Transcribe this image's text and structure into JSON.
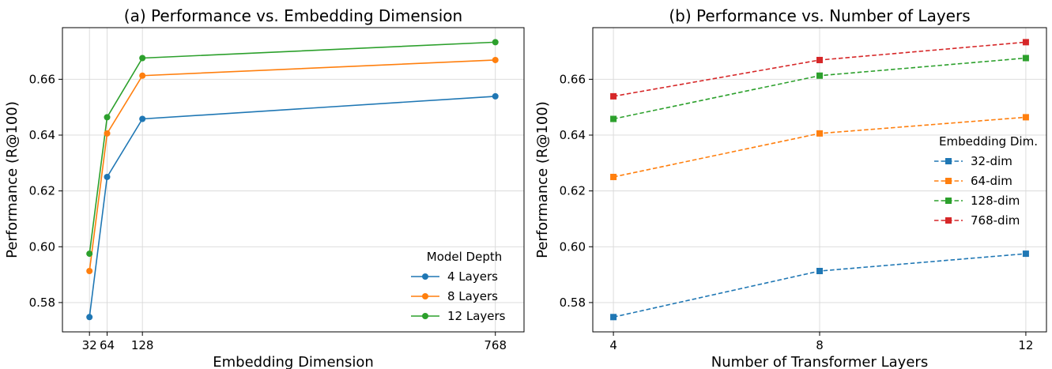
{
  "chart_data": [
    {
      "type": "line",
      "title": "(a) Performance vs. Embedding Dimension",
      "xlabel": "Embedding Dimension",
      "ylabel": "Performance (R@100)",
      "x": [
        32,
        64,
        128,
        768
      ],
      "x_ticks": [
        32,
        64,
        128,
        768
      ],
      "xlim": [
        -17,
        820
      ],
      "ylim": [
        0.5695,
        0.6785
      ],
      "y_ticks": [
        0.58,
        0.6,
        0.62,
        0.64,
        0.66
      ],
      "y_tick_labels": [
        "0.58",
        "0.60",
        "0.62",
        "0.64",
        "0.66"
      ],
      "grid": true,
      "legend": {
        "title": "Model Depth",
        "placement": "lower-right"
      },
      "series": [
        {
          "name": "4 Layers",
          "values": [
            0.5748,
            0.625,
            0.6458,
            0.6539
          ],
          "color": "#1f77b4",
          "marker": "circle",
          "linestyle": "solid"
        },
        {
          "name": "8 Layers",
          "values": [
            0.5913,
            0.6406,
            0.6613,
            0.6669
          ],
          "color": "#ff7f0e",
          "marker": "circle",
          "linestyle": "solid"
        },
        {
          "name": "12 Layers",
          "values": [
            0.5975,
            0.6464,
            0.6676,
            0.6733
          ],
          "color": "#2ca02c",
          "marker": "circle",
          "linestyle": "solid"
        }
      ]
    },
    {
      "type": "line",
      "title": "(b) Performance vs. Number of Layers",
      "xlabel": "Number of Transformer Layers",
      "ylabel": "Performance (R@100)",
      "x": [
        4,
        8,
        12
      ],
      "x_ticks": [
        4,
        8,
        12
      ],
      "xlim": [
        3.6,
        12.4
      ],
      "ylim": [
        0.5695,
        0.6785
      ],
      "y_ticks": [
        0.58,
        0.6,
        0.62,
        0.64,
        0.66
      ],
      "y_tick_labels": [
        "0.58",
        "0.60",
        "0.62",
        "0.64",
        "0.66"
      ],
      "grid": true,
      "legend": {
        "title": "Embedding Dim.",
        "placement": "center-right"
      },
      "series": [
        {
          "name": "32-dim",
          "values": [
            0.5748,
            0.5913,
            0.5975
          ],
          "color": "#1f77b4",
          "marker": "square",
          "linestyle": "dashed"
        },
        {
          "name": "64-dim",
          "values": [
            0.625,
            0.6406,
            0.6464
          ],
          "color": "#ff7f0e",
          "marker": "square",
          "linestyle": "dashed"
        },
        {
          "name": "128-dim",
          "values": [
            0.6458,
            0.6613,
            0.6676
          ],
          "color": "#2ca02c",
          "marker": "square",
          "linestyle": "dashed"
        },
        {
          "name": "768-dim",
          "values": [
            0.6539,
            0.6669,
            0.6733
          ],
          "color": "#d62728",
          "marker": "square",
          "linestyle": "dashed"
        }
      ]
    }
  ]
}
